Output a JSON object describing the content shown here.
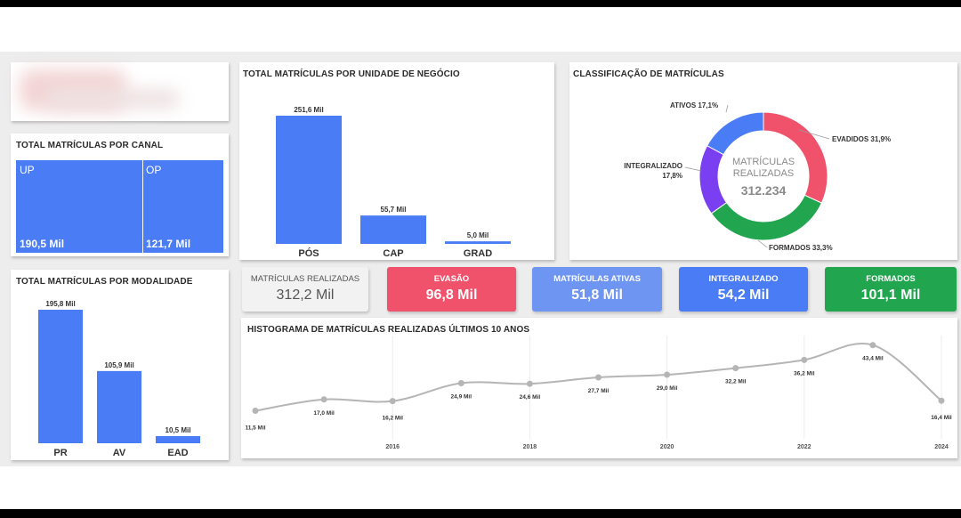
{
  "canal": {
    "title": "TOTAL MATRÍCULAS POR CANAL",
    "tiles": [
      {
        "label": "UP",
        "value": "190,5 Mil",
        "raw": 190.5
      },
      {
        "label": "OP",
        "value": "121,7 Mil",
        "raw": 121.7
      }
    ],
    "color": "#4a7cf5"
  },
  "kpis": [
    {
      "label": "MATRÍCULAS REALIZADAS",
      "value": "312,2 Mil",
      "color": "#f2f2f2",
      "text_color": "#555555"
    },
    {
      "label": "EVASÃO",
      "value": "96,8 Mil",
      "color": "#f0526b",
      "text_color": "#ffffff"
    },
    {
      "label": "MATRÍCULAS ATIVAS",
      "value": "51,8 Mil",
      "color": "#6f95f3",
      "text_color": "#ffffff"
    },
    {
      "label": "INTEGRALIZADO",
      "value": "54,2 Mil",
      "color": "#4a7cf5",
      "text_color": "#ffffff"
    },
    {
      "label": "FORMADOS",
      "value": "101,1 Mil",
      "color": "#22a54f",
      "text_color": "#ffffff"
    }
  ],
  "donut_center": {
    "line1": "MATRÍCULAS",
    "line2": "REALIZADAS",
    "value": "312.234"
  },
  "chart_data": [
    {
      "id": "unidade",
      "type": "bar",
      "title": "TOTAL MATRÍCULAS POR UNIDADE DE NEGÓCIO",
      "categories": [
        "PÓS",
        "CAP",
        "GRAD"
      ],
      "values": [
        251.6,
        55.7,
        5.0
      ],
      "labels": [
        "251,6 Mil",
        "55,7 Mil",
        "5,0 Mil"
      ],
      "color": "#4a7cf5"
    },
    {
      "id": "modalidade",
      "type": "bar",
      "title": "TOTAL MATRÍCULAS POR MODALIDADE",
      "categories": [
        "PR",
        "AV",
        "EAD"
      ],
      "values": [
        195.8,
        105.9,
        10.5
      ],
      "labels": [
        "195,8 Mil",
        "105,9 Mil",
        "10,5 Mil"
      ],
      "color": "#4a7cf5"
    },
    {
      "id": "classificacao",
      "type": "pie",
      "title": "CLASSIFICAÇÃO DE MATRÍCULAS",
      "slices": [
        {
          "name": "EVADIDOS",
          "label": "EVADIDOS 31,9%",
          "value": 31.9,
          "color": "#f0526b"
        },
        {
          "name": "FORMADOS",
          "label": "FORMADOS 33,3%",
          "value": 33.3,
          "color": "#22a54f"
        },
        {
          "name": "INTEGRALIZADO",
          "label_lines": [
            "INTEGRALIZADO",
            "17,8%"
          ],
          "value": 17.8,
          "color": "#7b3ff2"
        },
        {
          "name": "ATIVOS",
          "label": "ATIVOS 17,1%",
          "value": 17.1,
          "color": "#4a7cf5"
        }
      ]
    },
    {
      "id": "histograma",
      "type": "line",
      "title": "HISTOGRAMA DE MATRÍCULAS REALIZADAS ÚLTIMOS 10 ANOS",
      "x": [
        2014,
        2015,
        2016,
        2017,
        2018,
        2019,
        2020,
        2021,
        2022,
        2023,
        2024
      ],
      "values": [
        11.5,
        17.0,
        16.2,
        24.9,
        24.6,
        27.7,
        29.0,
        32.2,
        36.2,
        43.4,
        16.4
      ],
      "labels": [
        "11,5 Mil",
        "17,0 Mil",
        "16,2 Mil",
        "24,9 Mil",
        "24,6 Mil",
        "27,7 Mil",
        "29,0 Mil",
        "32,2 Mil",
        "36,2 Mil",
        "43,4 Mil",
        "16,4 Mil"
      ],
      "xticks": [
        "2016",
        "2018",
        "2020",
        "2022",
        "2024"
      ],
      "color": "#b5b5b5"
    }
  ]
}
